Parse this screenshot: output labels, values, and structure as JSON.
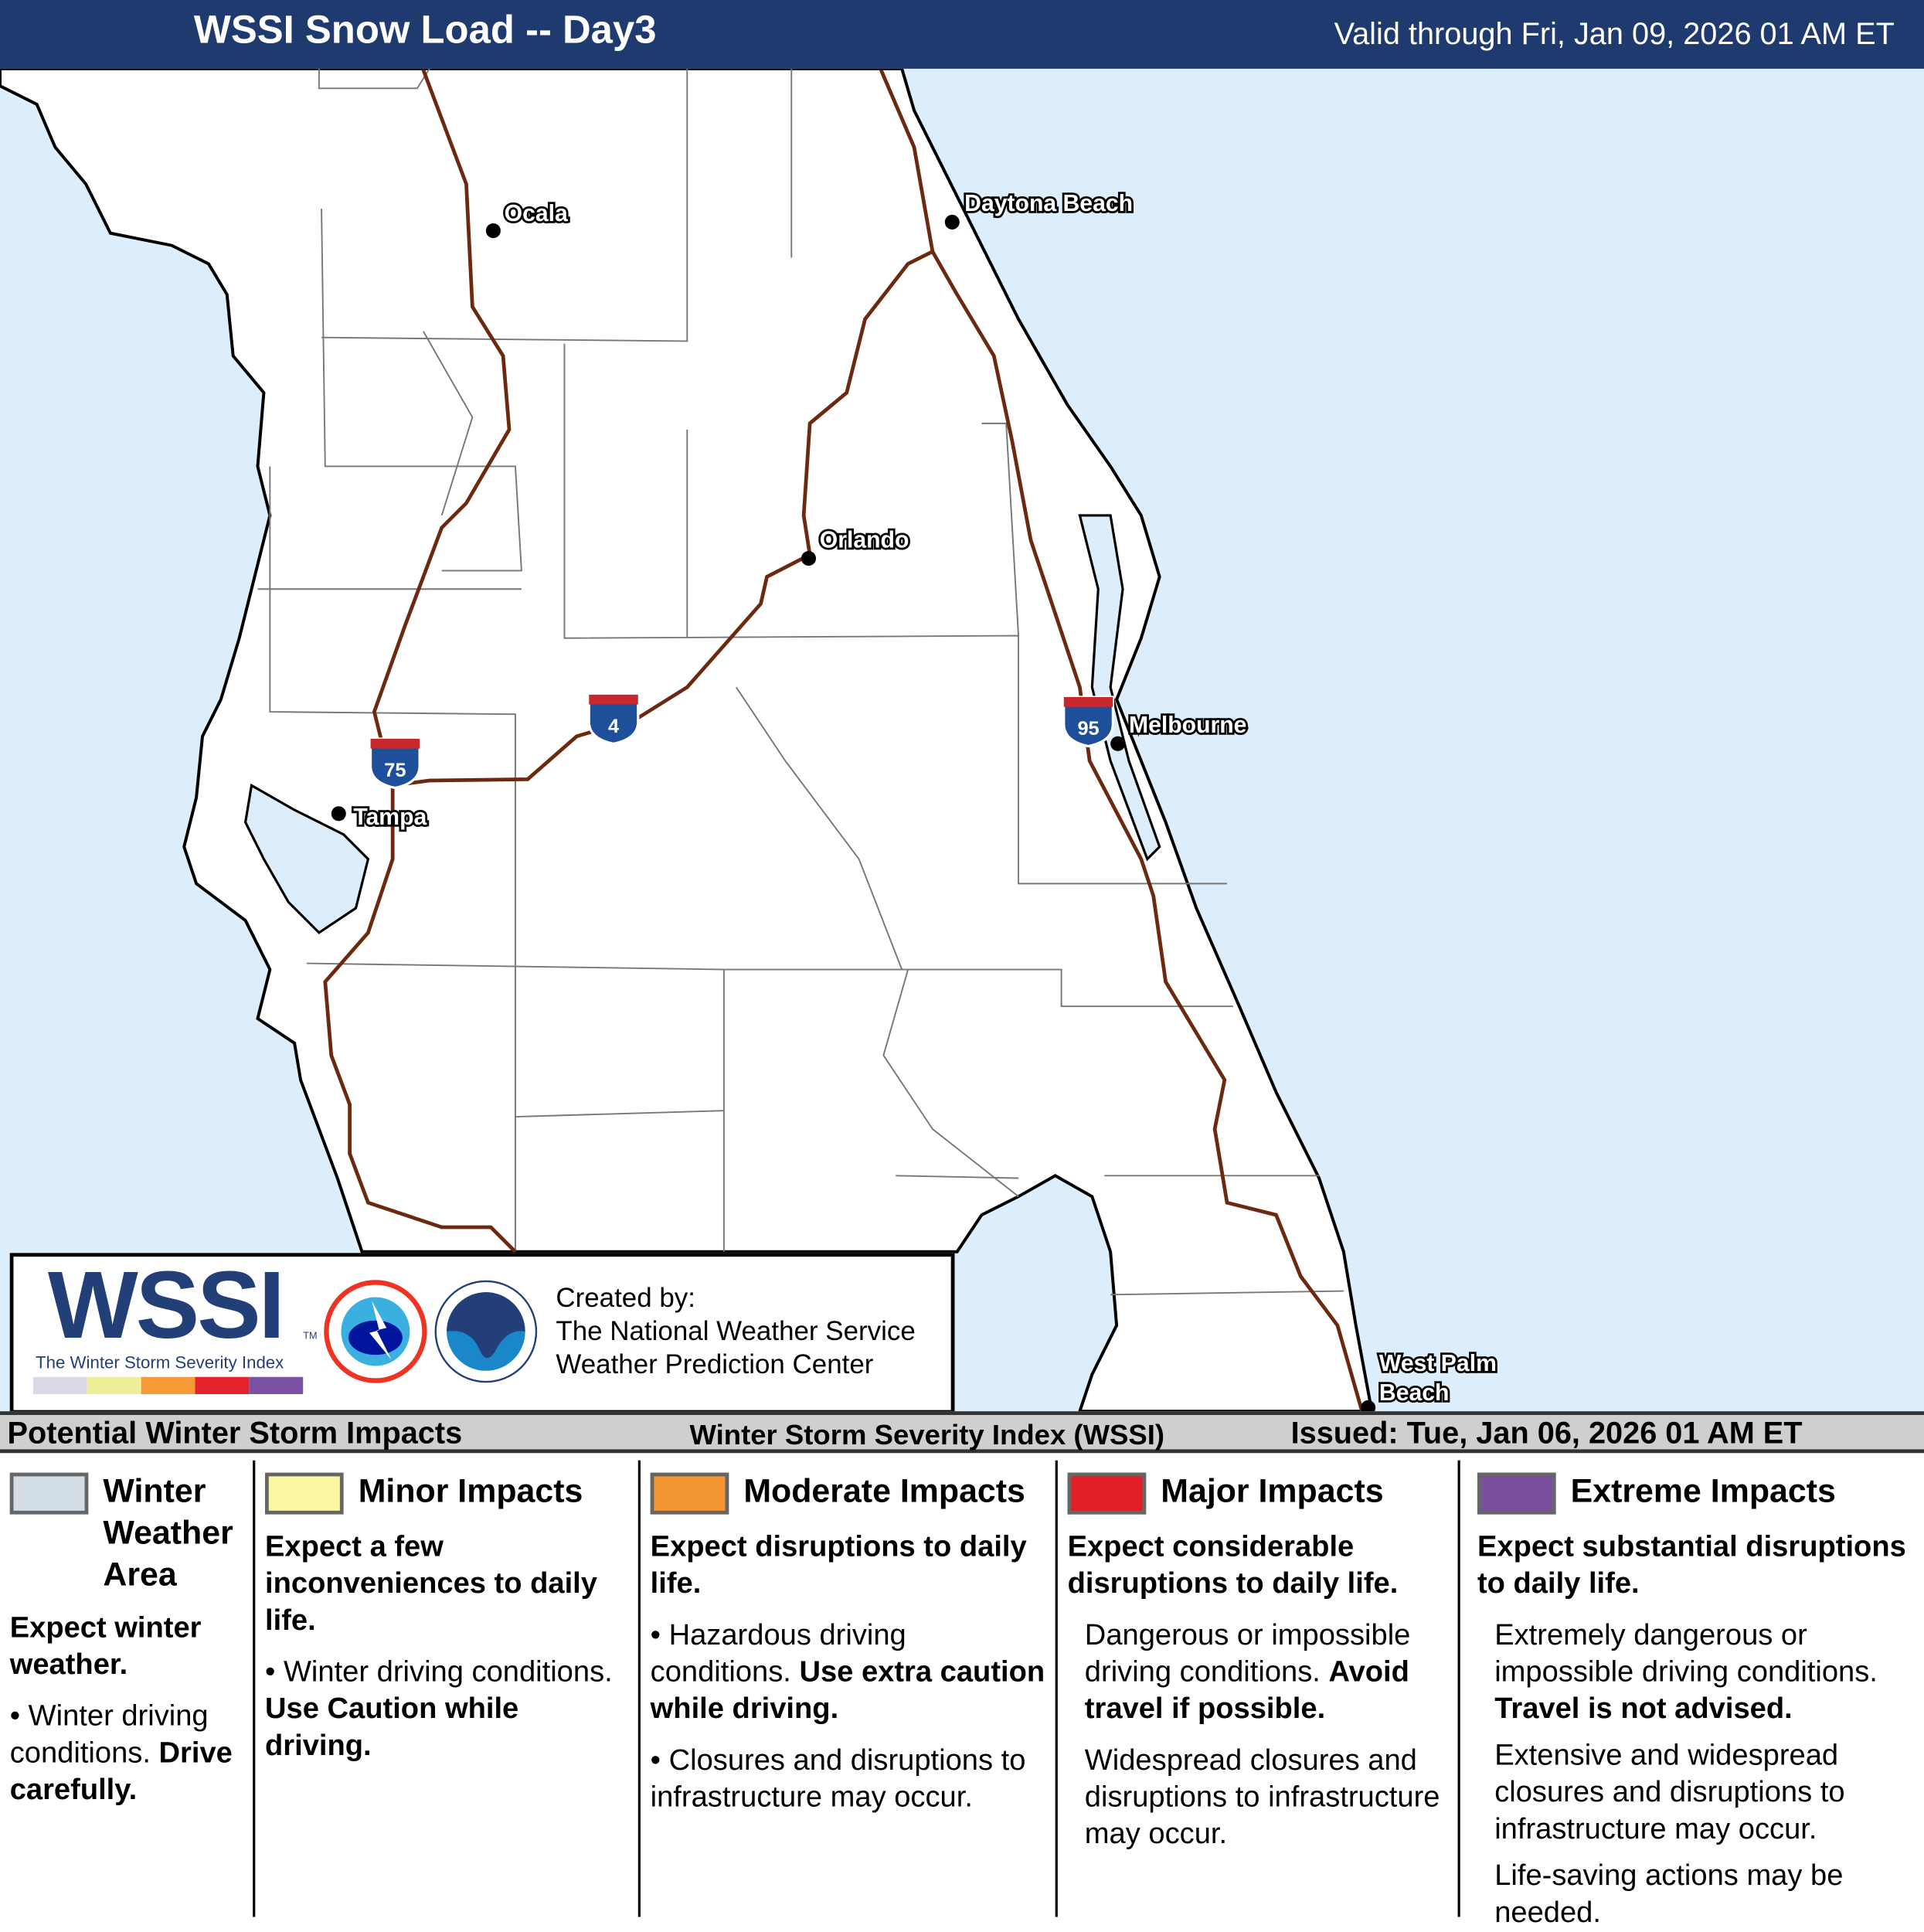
{
  "header": {
    "title": "WSSI Snow Load -- Day3",
    "valid": "Valid through Fri, Jan 09, 2026 01 AM ET"
  },
  "map": {
    "cities": {
      "ocala": "Ocala",
      "daytona": "Daytona Beach",
      "orlando": "Orlando",
      "melbourne": "Melbourne",
      "tampa": "Tampa",
      "wpb1": "West Palm",
      "wpb2": "Beach"
    },
    "shields": {
      "i75": "75",
      "i4": "4",
      "i95": "95"
    },
    "colors": {
      "ocean": "#dceefc",
      "land": "#ffffff",
      "highway": "#6b2a10"
    }
  },
  "logo": {
    "wssi": "WSSI",
    "tm": "TM",
    "subtitle": "The Winter Storm Severity Index",
    "created_by": "Created by:",
    "org1": "The National Weather Service",
    "org2": "Weather Prediction Center",
    "scale_colors": [
      "#d9d9e8",
      "#eeee99",
      "#f59a35",
      "#e3222b",
      "#7b52a3"
    ]
  },
  "band": {
    "left": "Potential Winter Storm Impacts",
    "center": "Winter Storm Severity Index (WSSI)",
    "right": "Issued: Tue, Jan 06, 2026 01 AM ET"
  },
  "legend": [
    {
      "title": "Winter Weather Area",
      "color": "#d3dee6",
      "lead": "Expect winter weather.",
      "text": "Winter driving conditions.",
      "bold": "Drive carefully."
    },
    {
      "title": "Minor Impacts",
      "color": "#fbf7a3",
      "lead": "Expect a few inconveniences to daily life.",
      "text": "Winter driving conditions.",
      "bold": "Use Caution while driving."
    },
    {
      "title": "Moderate Impacts",
      "color": "#f49632",
      "lead": "Expect disruptions to daily life.",
      "text": "Hazardous driving conditions.",
      "bold": "Use extra caution while driving.",
      "text2": "Closures and disruptions to infrastructure may occur."
    },
    {
      "title": "Major Impacts",
      "color": "#e31f26",
      "lead": "Expect considerable disruptions to daily life.",
      "text": "Dangerous or impossible driving conditions.",
      "bold": "Avoid travel if possible.",
      "text2": "Widespread closures and disruptions to infrastructure may occur."
    },
    {
      "title": "Extreme Impacts",
      "color": "#7a4f9e",
      "lead": "Expect substantial disruptions to daily life.",
      "text": "Extremely dangerous or impossible driving conditions.",
      "bold": "Travel is not advised.",
      "text2": "Extensive and widespread closures and disruptions to infrastructure may occur.",
      "text3": "Life-saving actions may be needed."
    }
  ]
}
